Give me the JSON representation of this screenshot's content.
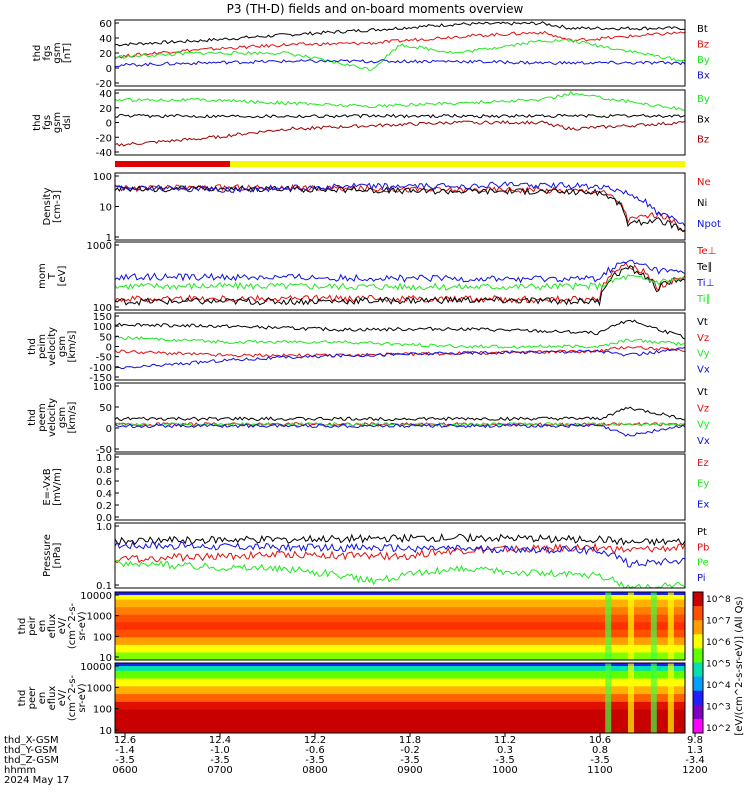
{
  "title": "P3 (TH-D) fields and on-board moments overview",
  "date_label": "2024 May 17",
  "colors": {
    "black": "#000000",
    "red": "#e01010",
    "green": "#20e820",
    "blue": "#1010e0",
    "darkred": "#9b0000",
    "yellow": "#f8f800"
  },
  "chart_data": [
    {
      "type": "line",
      "ylabel": [
        "thd",
        "fgs",
        "gsm",
        "[nT]"
      ],
      "ylim": [
        -20,
        60
      ],
      "yticks": [
        "60",
        "40",
        "20",
        "0",
        "-20"
      ],
      "series": [
        {
          "name": "Bt",
          "color": "black",
          "x": [
            0,
            0.15,
            0.3,
            0.45,
            0.6,
            0.75,
            0.8,
            1
          ],
          "y": [
            30,
            35,
            42,
            48,
            55,
            56,
            50,
            50
          ]
        },
        {
          "name": "Bz",
          "color": "red",
          "x": [
            0,
            0.1,
            0.3,
            0.45,
            0.6,
            0.75,
            0.8,
            1
          ],
          "y": [
            15,
            22,
            30,
            32,
            40,
            45,
            35,
            45
          ]
        },
        {
          "name": "By",
          "color": "green",
          "x": [
            0,
            0.15,
            0.3,
            0.45,
            0.5,
            0.6,
            0.75,
            0.8,
            1
          ],
          "y": [
            15,
            20,
            20,
            0,
            30,
            20,
            35,
            35,
            10
          ]
        },
        {
          "name": "Bx",
          "color": "blue",
          "x": [
            0,
            0.15,
            0.3,
            0.45,
            0.6,
            0.75,
            0.8,
            1
          ],
          "y": [
            5,
            8,
            10,
            10,
            10,
            8,
            8,
            8
          ]
        }
      ]
    },
    {
      "type": "line",
      "ylabel": [
        "thd",
        "fgs",
        "gsm",
        "dsl"
      ],
      "ylim": [
        -60,
        40
      ],
      "yticks": [
        "40",
        "20",
        "0",
        "-20",
        "-40"
      ],
      "series": [
        {
          "name": "By",
          "color": "green",
          "x": [
            0,
            0.15,
            0.3,
            0.45,
            0.6,
            0.75,
            0.8,
            1
          ],
          "y": [
            25,
            25,
            20,
            15,
            20,
            25,
            35,
            10
          ]
        },
        {
          "name": "Bx",
          "color": "black",
          "x": [
            0,
            0.15,
            0.3,
            0.45,
            0.6,
            0.75,
            0.8,
            1
          ],
          "y": [
            0,
            0,
            0,
            0,
            0,
            0,
            0,
            0
          ]
        },
        {
          "name": "Bz",
          "color": "darkred",
          "x": [
            0,
            0.15,
            0.3,
            0.45,
            0.6,
            0.75,
            0.8,
            1
          ],
          "y": [
            -45,
            -35,
            -20,
            -15,
            -10,
            -10,
            -20,
            -10
          ]
        }
      ]
    },
    {
      "type": "line",
      "ylabel": [
        "Density",
        "[cm-3]"
      ],
      "ylim": [
        0.5,
        200
      ],
      "log": true,
      "yticks": [
        "100",
        "10",
        "1"
      ],
      "series": [
        {
          "name": "Ne",
          "color": "red",
          "x": [
            0,
            0.2,
            0.4,
            0.55,
            0.7,
            0.85,
            0.9,
            0.95,
            1
          ],
          "y": [
            50,
            55,
            50,
            45,
            45,
            40,
            3,
            5,
            1
          ]
        },
        {
          "name": "Ni",
          "color": "black",
          "x": [
            0,
            0.2,
            0.4,
            0.55,
            0.7,
            0.85,
            0.9,
            0.95,
            1
          ],
          "y": [
            45,
            50,
            45,
            40,
            40,
            35,
            2,
            3,
            1
          ]
        },
        {
          "name": "Npot",
          "color": "blue",
          "x": [
            0,
            0.2,
            0.4,
            0.55,
            0.7,
            0.85,
            0.9,
            0.95,
            1
          ],
          "y": [
            55,
            45,
            60,
            60,
            70,
            60,
            30,
            5,
            2
          ]
        }
      ]
    },
    {
      "type": "line",
      "ylabel": [
        "mom",
        "T",
        "[eV]"
      ],
      "ylim": [
        20,
        5000
      ],
      "log": true,
      "yticks": [
        "1000",
        "100"
      ],
      "series": [
        {
          "name": "Te⊥",
          "color": "red",
          "x": [
            0,
            0.3,
            0.6,
            0.85,
            0.9,
            0.95,
            1
          ],
          "y": [
            50,
            50,
            50,
            45,
            800,
            120,
            300
          ]
        },
        {
          "name": "Te∥",
          "color": "black",
          "x": [
            0,
            0.3,
            0.6,
            0.85,
            0.9,
            0.95,
            1
          ],
          "y": [
            40,
            40,
            45,
            40,
            600,
            110,
            280
          ]
        },
        {
          "name": "Ti⊥",
          "color": "blue",
          "x": [
            0,
            0.3,
            0.6,
            0.85,
            0.9,
            0.95,
            1
          ],
          "y": [
            300,
            280,
            250,
            250,
            1000,
            500,
            400
          ]
        },
        {
          "name": "Ti∥",
          "color": "green",
          "x": [
            0,
            0.3,
            0.6,
            0.85,
            0.9,
            0.95,
            1
          ],
          "y": [
            140,
            140,
            130,
            140,
            300,
            200,
            250
          ]
        }
      ]
    },
    {
      "type": "line",
      "ylabel": [
        "thd",
        "peim",
        "velocity",
        "gsm",
        "[km/s]"
      ],
      "ylim": [
        -150,
        150
      ],
      "yticks": [
        "150",
        "100",
        "50",
        "0",
        "-50",
        "-100",
        "-150"
      ],
      "series": [
        {
          "name": "Vt",
          "color": "black",
          "x": [
            0,
            0.2,
            0.4,
            0.6,
            0.85,
            0.9,
            1
          ],
          "y": [
            100,
            90,
            75,
            80,
            60,
            120,
            40
          ]
        },
        {
          "name": "Vz",
          "color": "red",
          "x": [
            0,
            0.2,
            0.4,
            0.6,
            0.85,
            0.9,
            1
          ],
          "y": [
            -20,
            -40,
            -40,
            -30,
            -20,
            0,
            -20
          ]
        },
        {
          "name": "Vy",
          "color": "green",
          "x": [
            0,
            0.2,
            0.4,
            0.6,
            0.85,
            0.9,
            1
          ],
          "y": [
            40,
            20,
            20,
            0,
            0,
            30,
            10
          ]
        },
        {
          "name": "Vx",
          "color": "blue",
          "x": [
            0,
            0.2,
            0.4,
            0.6,
            0.85,
            0.9,
            1
          ],
          "y": [
            -100,
            -60,
            -40,
            -30,
            -20,
            -40,
            -10
          ]
        }
      ]
    },
    {
      "type": "line",
      "ylabel": [
        "thd",
        "peem",
        "velocity",
        "gsm",
        "[km/s]"
      ],
      "ylim": [
        -100,
        150
      ],
      "yticks": [
        "100",
        "50",
        "0",
        "-50"
      ],
      "series": [
        {
          "name": "Vt",
          "color": "black",
          "x": [
            0,
            0.5,
            0.85,
            0.9,
            1
          ],
          "y": [
            20,
            20,
            20,
            60,
            20
          ]
        },
        {
          "name": "Vz",
          "color": "red",
          "x": [
            0,
            0.5,
            0.85,
            0.9,
            1
          ],
          "y": [
            0,
            0,
            0,
            0,
            0
          ]
        },
        {
          "name": "Vy",
          "color": "green",
          "x": [
            0,
            0.5,
            0.85,
            0.9,
            1
          ],
          "y": [
            0,
            0,
            0,
            0,
            0
          ]
        },
        {
          "name": "Vx",
          "color": "blue",
          "x": [
            0,
            0.5,
            0.85,
            0.9,
            1
          ],
          "y": [
            -5,
            -5,
            -5,
            -40,
            -5
          ]
        }
      ]
    },
    {
      "type": "line",
      "ylabel": [
        "E=-VxB",
        "[mV/m]"
      ],
      "ylim": [
        0,
        1
      ],
      "yticks": [
        "1.0",
        "0.8",
        "0.6",
        "0.4",
        "0.2",
        "0.0"
      ],
      "series": [
        {
          "name": "Ez",
          "color": "red",
          "x": [],
          "y": []
        },
        {
          "name": "Ey",
          "color": "green",
          "x": [],
          "y": []
        },
        {
          "name": "Ex",
          "color": "blue",
          "x": [],
          "y": []
        }
      ]
    },
    {
      "type": "line",
      "ylabel": [
        "Pressure",
        "[nPa]"
      ],
      "ylim": [
        0.05,
        6
      ],
      "log": true,
      "yticks": [
        "1.0",
        "0.1"
      ],
      "series": [
        {
          "name": "Pt",
          "color": "black",
          "x": [
            0,
            0.3,
            0.6,
            0.85,
            0.9,
            1
          ],
          "y": [
            1.6,
            1.8,
            2.0,
            1.8,
            1.4,
            1.5
          ]
        },
        {
          "name": "Pb",
          "color": "red",
          "x": [
            0,
            0.3,
            0.5,
            0.6,
            0.85,
            0.9,
            1
          ],
          "y": [
            0.4,
            0.6,
            0.5,
            0.8,
            1.0,
            0.8,
            1.0
          ]
        },
        {
          "name": "Pe",
          "color": "green",
          "x": [
            0,
            0.3,
            0.45,
            0.6,
            0.85,
            0.9,
            1
          ],
          "y": [
            0.3,
            0.2,
            0.08,
            0.2,
            0.12,
            0.05,
            0.06
          ]
        },
        {
          "name": "Pi",
          "color": "blue",
          "x": [
            0,
            0.3,
            0.6,
            0.85,
            0.9,
            1
          ],
          "y": [
            1.2,
            1.0,
            0.9,
            0.8,
            0.3,
            0.4
          ]
        }
      ]
    },
    {
      "type": "heatmap",
      "ylabel": [
        "thd",
        "peir",
        "en",
        "eflux",
        "eV/",
        "(cm^2-s-",
        "sr-eV)"
      ],
      "log": true,
      "yticks": [
        "10000",
        "1000",
        "100",
        "10"
      ]
    },
    {
      "type": "heatmap",
      "ylabel": [
        "thd",
        "peer",
        "en",
        "eflux",
        "eV/",
        "(cm^2-s-",
        "sr-eV)"
      ],
      "log": true,
      "yticks": [
        "10000",
        "1000",
        "100",
        "10"
      ]
    }
  ],
  "colorbar": {
    "ticks": [
      "10^8",
      "10^7",
      "10^6",
      "10^5",
      "10^4",
      "10^3",
      "10^2"
    ],
    "label": "[eV/(cm^2-s-sr-eV)] (All Qs)",
    "colors": [
      "#c80000",
      "#ff5000",
      "#ffa000",
      "#ffff00",
      "#60ff00",
      "#00e0b0",
      "#00a0ff",
      "#2020ff",
      "#8000c0",
      "#ff00ff"
    ]
  },
  "x_axis": {
    "row_labels": [
      "thd_X-GSM",
      "thd_Y-GSM",
      "thd_Z-GSM",
      "hhmm",
      "2024 May 17"
    ],
    "columns": [
      {
        "values": [
          "12.6",
          "-1.4",
          "-3.5",
          "0600"
        ]
      },
      {
        "values": [
          "12.4",
          "-1.0",
          "-3.5",
          "0700"
        ]
      },
      {
        "values": [
          "12.2",
          "-0.6",
          "-3.5",
          "0800"
        ]
      },
      {
        "values": [
          "11.8",
          "-0.2",
          "-3.5",
          "0900"
        ]
      },
      {
        "values": [
          "11.2",
          "0.3",
          "-3.5",
          "1000"
        ]
      },
      {
        "values": [
          "10.6",
          "0.8",
          "-3.5",
          "1100"
        ]
      },
      {
        "values": [
          "9.8",
          "1.3",
          "-3.4",
          "1200"
        ]
      }
    ]
  }
}
